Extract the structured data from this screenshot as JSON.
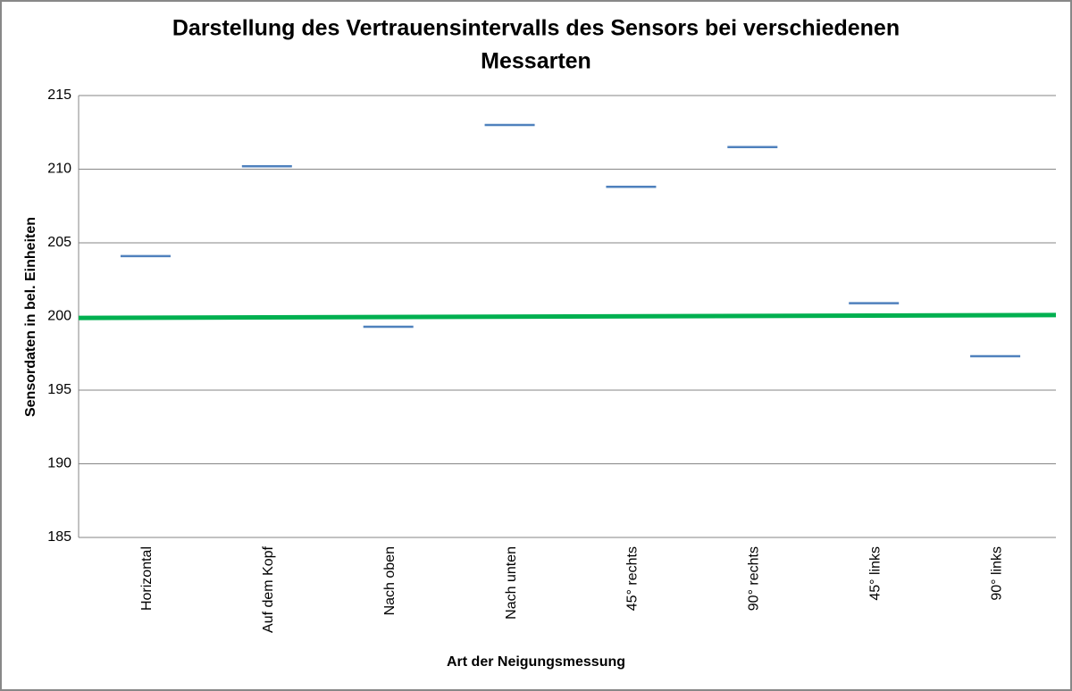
{
  "chart_data": {
    "type": "line",
    "title": "Darstellung des Vertrauensintervalls des Sensors bei verschiedenen Messarten",
    "x_label": "Art der Neigungsmessung",
    "y_label": "Sensordaten in bel. Einheiten",
    "categories": [
      "Horizontal",
      "Auf dem Kopf",
      "Nach oben",
      "Nach unten",
      "45° rechts",
      "90° rechts",
      "45° links",
      "90° links"
    ],
    "series": [
      {
        "color": "#4f81bd",
        "marker": "dash",
        "values": [
          204.1,
          210.2,
          199.3,
          213.0,
          208.8,
          211.5,
          200.9,
          197.3
        ]
      }
    ],
    "trendline": {
      "color": "#00b050",
      "values": [
        199.9,
        200.1
      ]
    },
    "ylim": [
      185,
      215
    ],
    "yticks": [
      185,
      190,
      195,
      200,
      205,
      210,
      215
    ],
    "grid": true
  }
}
